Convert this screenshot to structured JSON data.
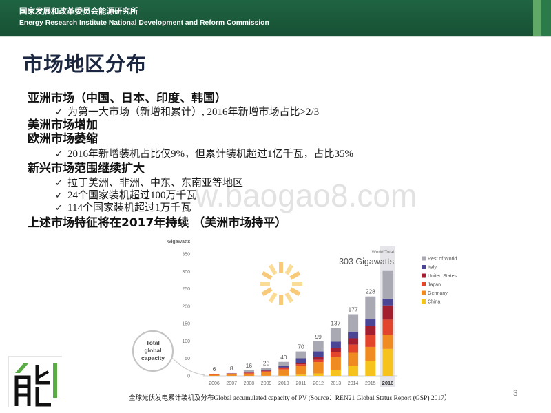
{
  "header": {
    "org_cn": "国家发展和改革委员会能源研究所",
    "org_en": "Energy Research Institute National Development and Reform Commission",
    "color": "#1b5a3a",
    "accent_color": "#5fa866"
  },
  "slide": {
    "title": "市场地区分布",
    "page_number": "3",
    "watermark": "w.baogao8.com",
    "caption": "全球光伏发电累计装机及分布Global accumulated capacity of PV (Source：REN21 Global Status Report (GSP) 2017）"
  },
  "sub_bullet_marker": "✓",
  "bullets": [
    {
      "text": "亚洲市场（中国、日本、印度、韩国）",
      "sub": [
        "为第一大市场（新增和累计）, 2016年新增市场占比>2/3"
      ]
    },
    {
      "text": "美洲市场增加",
      "sub": []
    },
    {
      "text": "欧洲市场萎缩",
      "sub": [
        "2016年新增装机占比仅9%，但累计装机超过1亿千瓦，占比35%"
      ]
    },
    {
      "text": "新兴市场范围继续扩大",
      "sub": [
        "拉丁美洲、非洲、中东、东南亚等地区",
        "24个国家装机超过100万千瓦",
        "114个国家装机超过1万千瓦"
      ]
    },
    {
      "text": "上述市场特征将在2017年持续 （美洲市场持平）",
      "sub": []
    }
  ],
  "chart_data": {
    "type": "bar",
    "stacked": true,
    "ylabel": "Gigawatts",
    "ylim": [
      0,
      350
    ],
    "yticks": [
      0,
      50,
      100,
      150,
      200,
      250,
      300,
      350
    ],
    "categories": [
      "2006",
      "2007",
      "2008",
      "2009",
      "2010",
      "2011",
      "2012",
      "2013",
      "2014",
      "2015",
      "2016"
    ],
    "highlight_category": "2016",
    "totals": [
      6,
      8,
      16,
      23,
      40,
      70,
      99,
      137,
      177,
      228,
      303
    ],
    "world_total": {
      "label": "World Total",
      "value_label": "303 Gigawatts"
    },
    "callout": [
      "Total",
      "global",
      "capacity"
    ],
    "legend_position": "right",
    "grid": false,
    "series": [
      {
        "name": "China",
        "color": "#f6c31c",
        "values": [
          0.1,
          0.1,
          0.1,
          0.4,
          0.8,
          3.3,
          6.7,
          17.7,
          28.0,
          43.5,
          77.4
        ]
      },
      {
        "name": "Germany",
        "color": "#f08b22",
        "values": [
          2.9,
          4.2,
          6.2,
          10.6,
          17.6,
          25.0,
          32.7,
          36.3,
          38.2,
          39.7,
          41.2
        ]
      },
      {
        "name": "Japan",
        "color": "#e2452c",
        "values": [
          1.7,
          1.9,
          2.1,
          2.6,
          3.6,
          4.9,
          6.6,
          13.6,
          23.3,
          34.4,
          42.8
        ]
      },
      {
        "name": "United States",
        "color": "#a31f2f",
        "values": [
          0.6,
          0.8,
          1.2,
          1.6,
          2.5,
          4.4,
          7.7,
          12.1,
          18.3,
          25.6,
          40.9
        ]
      },
      {
        "name": "Italy",
        "color": "#4b4596",
        "values": [
          0.05,
          0.1,
          0.5,
          1.2,
          3.5,
          12.8,
          16.4,
          18.2,
          18.5,
          18.9,
          19.3
        ]
      },
      {
        "name": "Rest of World",
        "color": "#a9a9b3",
        "values": [
          0.65,
          0.9,
          5.9,
          6.6,
          12.0,
          19.6,
          28.9,
          39.1,
          50.7,
          65.9,
          81.4
        ]
      }
    ]
  }
}
